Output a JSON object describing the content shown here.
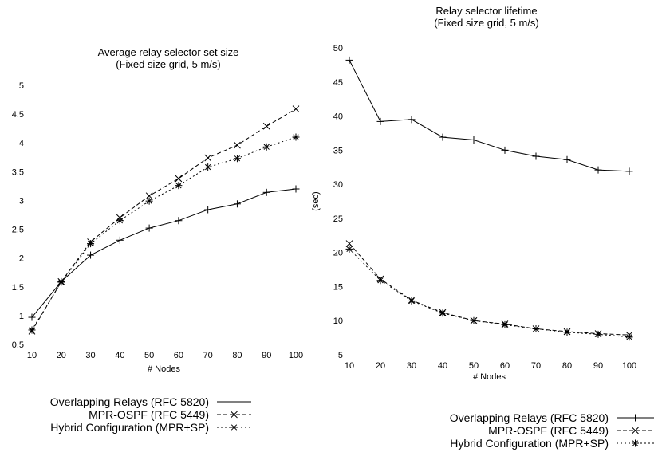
{
  "chart_data": [
    {
      "type": "line",
      "title": "Average relay selector set size",
      "subtitle": "(Fixed size grid, 5 m/s)",
      "xlabel": "# Nodes",
      "ylabel": "",
      "x": [
        10,
        20,
        30,
        40,
        50,
        60,
        70,
        80,
        90,
        100
      ],
      "xlim": [
        10,
        100
      ],
      "ylim": [
        0.5,
        5
      ],
      "yticks": [
        "0.5",
        "1",
        "1.5",
        "2",
        "2.5",
        "3",
        "3.5",
        "4",
        "4.5",
        "5"
      ],
      "grid": false,
      "legend_position": "bottom",
      "series": [
        {
          "name": "Overlapping Relays (RFC 5820)",
          "values": [
            0.97,
            1.59,
            2.05,
            2.31,
            2.52,
            2.65,
            2.84,
            2.94,
            3.14,
            3.2
          ]
        },
        {
          "name": "MPR-OSPF (RFC 5449)",
          "values": [
            0.73,
            1.59,
            2.28,
            2.7,
            3.08,
            3.38,
            3.74,
            3.96,
            4.29,
            4.59
          ]
        },
        {
          "name": "Hybrid Configuration (MPR+SP)",
          "values": [
            0.75,
            1.58,
            2.25,
            2.65,
            2.99,
            3.26,
            3.58,
            3.73,
            3.93,
            4.1
          ]
        }
      ]
    },
    {
      "type": "line",
      "title": "Relay selector lifetime",
      "subtitle": "(Fixed size grid, 5 m/s)",
      "xlabel": "# Nodes",
      "ylabel": "(sec)",
      "x": [
        10,
        20,
        30,
        40,
        50,
        60,
        70,
        80,
        90,
        100
      ],
      "xlim": [
        10,
        100
      ],
      "ylim": [
        5,
        50
      ],
      "yticks": [
        "5",
        "10",
        "15",
        "20",
        "25",
        "30",
        "35",
        "40",
        "45",
        "50"
      ],
      "grid": false,
      "legend_position": "bottom",
      "series": [
        {
          "name": "Overlapping Relays (RFC 5820)",
          "values": [
            48.2,
            39.2,
            39.5,
            36.9,
            36.5,
            35.0,
            34.1,
            33.6,
            32.1,
            31.9
          ]
        },
        {
          "name": "MPR-OSPF (RFC 5449)",
          "values": [
            21.3,
            16.1,
            13.0,
            11.2,
            10.0,
            9.5,
            8.8,
            8.4,
            8.1,
            7.9
          ]
        },
        {
          "name": "Hybrid Configuration (MPR+SP)",
          "values": [
            20.5,
            15.9,
            12.9,
            11.1,
            10.0,
            9.4,
            8.8,
            8.3,
            8.0,
            7.6
          ]
        }
      ]
    }
  ]
}
